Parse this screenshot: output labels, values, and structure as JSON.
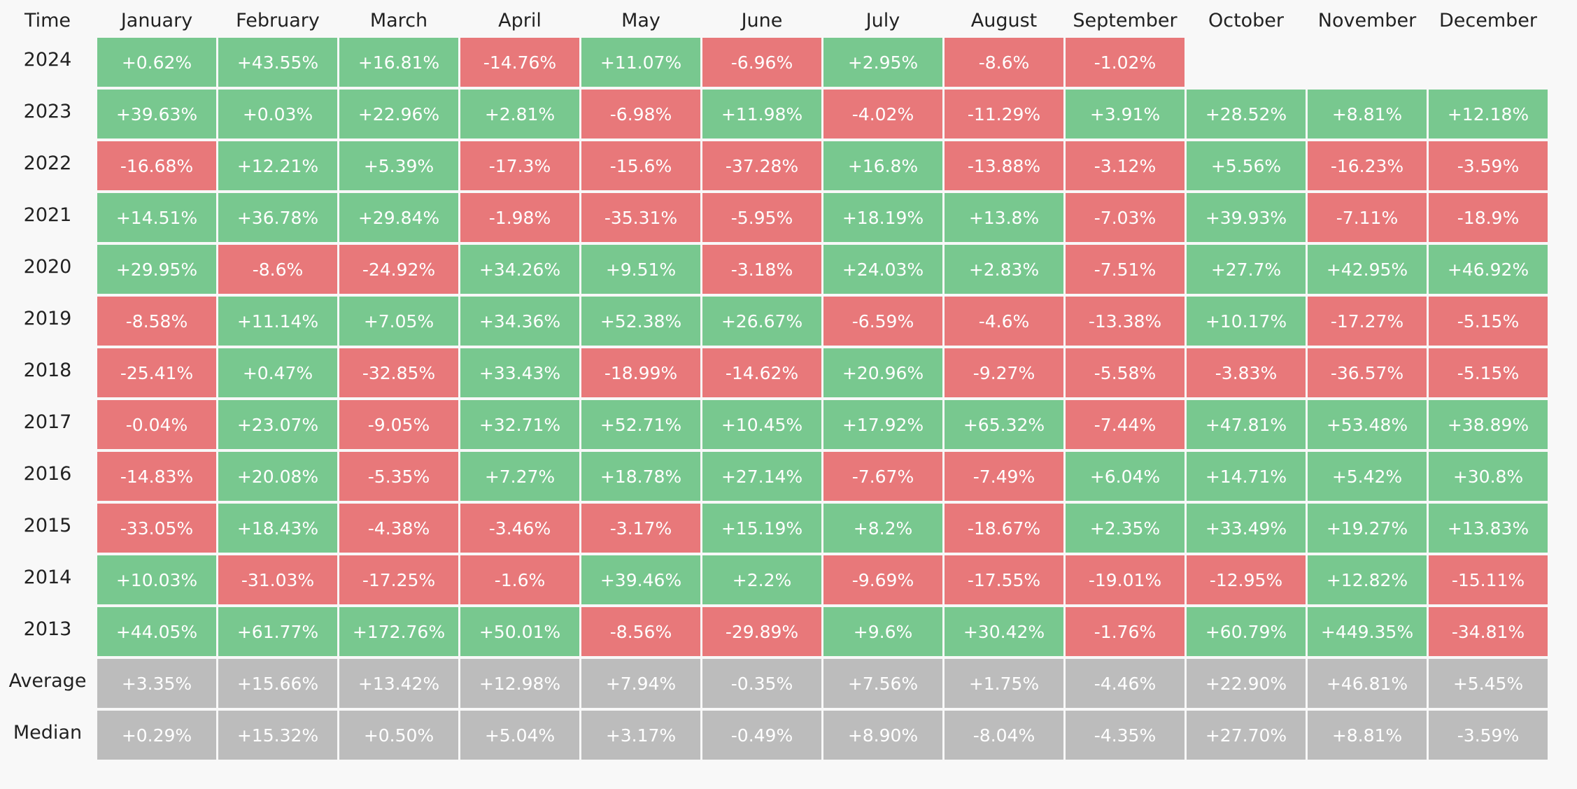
{
  "table": {
    "header": [
      "Time",
      "January",
      "February",
      "March",
      "April",
      "May",
      "June",
      "July",
      "August",
      "September",
      "October",
      "November",
      "December"
    ],
    "colors": {
      "positive": "#78c88f",
      "negative": "#e8787a",
      "summary": "#bcbcbc"
    },
    "rows": [
      {
        "label": "2024",
        "cells": [
          "+0.62%",
          "+43.55%",
          "+16.81%",
          "-14.76%",
          "+11.07%",
          "-6.96%",
          "+2.95%",
          "-8.6%",
          "-1.02%"
        ]
      },
      {
        "label": "2023",
        "cells": [
          "+39.63%",
          "+0.03%",
          "+22.96%",
          "+2.81%",
          "-6.98%",
          "+11.98%",
          "-4.02%",
          "-11.29%",
          "+3.91%",
          "+28.52%",
          "+8.81%",
          "+12.18%"
        ]
      },
      {
        "label": "2022",
        "cells": [
          "-16.68%",
          "+12.21%",
          "+5.39%",
          "-17.3%",
          "-15.6%",
          "-37.28%",
          "+16.8%",
          "-13.88%",
          "-3.12%",
          "+5.56%",
          "-16.23%",
          "-3.59%"
        ]
      },
      {
        "label": "2021",
        "cells": [
          "+14.51%",
          "+36.78%",
          "+29.84%",
          "-1.98%",
          "-35.31%",
          "-5.95%",
          "+18.19%",
          "+13.8%",
          "-7.03%",
          "+39.93%",
          "-7.11%",
          "-18.9%"
        ]
      },
      {
        "label": "2020",
        "cells": [
          "+29.95%",
          "-8.6%",
          "-24.92%",
          "+34.26%",
          "+9.51%",
          "-3.18%",
          "+24.03%",
          "+2.83%",
          "-7.51%",
          "+27.7%",
          "+42.95%",
          "+46.92%"
        ]
      },
      {
        "label": "2019",
        "cells": [
          "-8.58%",
          "+11.14%",
          "+7.05%",
          "+34.36%",
          "+52.38%",
          "+26.67%",
          "-6.59%",
          "-4.6%",
          "-13.38%",
          "+10.17%",
          "-17.27%",
          "-5.15%"
        ]
      },
      {
        "label": "2018",
        "cells": [
          "-25.41%",
          "+0.47%",
          "-32.85%",
          "+33.43%",
          "-18.99%",
          "-14.62%",
          "+20.96%",
          "-9.27%",
          "-5.58%",
          "-3.83%",
          "-36.57%",
          "-5.15%"
        ]
      },
      {
        "label": "2017",
        "cells": [
          "-0.04%",
          "+23.07%",
          "-9.05%",
          "+32.71%",
          "+52.71%",
          "+10.45%",
          "+17.92%",
          "+65.32%",
          "-7.44%",
          "+47.81%",
          "+53.48%",
          "+38.89%"
        ]
      },
      {
        "label": "2016",
        "cells": [
          "-14.83%",
          "+20.08%",
          "-5.35%",
          "+7.27%",
          "+18.78%",
          "+27.14%",
          "-7.67%",
          "-7.49%",
          "+6.04%",
          "+14.71%",
          "+5.42%",
          "+30.8%"
        ]
      },
      {
        "label": "2015",
        "cells": [
          "-33.05%",
          "+18.43%",
          "-4.38%",
          "-3.46%",
          "-3.17%",
          "+15.19%",
          "+8.2%",
          "-18.67%",
          "+2.35%",
          "+33.49%",
          "+19.27%",
          "+13.83%"
        ]
      },
      {
        "label": "2014",
        "cells": [
          "+10.03%",
          "-31.03%",
          "-17.25%",
          "-1.6%",
          "+39.46%",
          "+2.2%",
          "-9.69%",
          "-17.55%",
          "-19.01%",
          "-12.95%",
          "+12.82%",
          "-15.11%"
        ]
      },
      {
        "label": "2013",
        "cells": [
          "+44.05%",
          "+61.77%",
          "+172.76%",
          "+50.01%",
          "-8.56%",
          "-29.89%",
          "+9.6%",
          "+30.42%",
          "-1.76%",
          "+60.79%",
          "+449.35%",
          "-34.81%"
        ]
      }
    ],
    "summary_rows": [
      {
        "label": "Average",
        "cells": [
          "+3.35%",
          "+15.66%",
          "+13.42%",
          "+12.98%",
          "+7.94%",
          "-0.35%",
          "+7.56%",
          "+1.75%",
          "-4.46%",
          "+22.90%",
          "+46.81%",
          "+5.45%"
        ]
      },
      {
        "label": "Median",
        "cells": [
          "+0.29%",
          "+15.32%",
          "+0.50%",
          "+5.04%",
          "+3.17%",
          "-0.49%",
          "+8.90%",
          "-8.04%",
          "-4.35%",
          "+27.70%",
          "+8.81%",
          "-3.59%"
        ]
      }
    ]
  }
}
